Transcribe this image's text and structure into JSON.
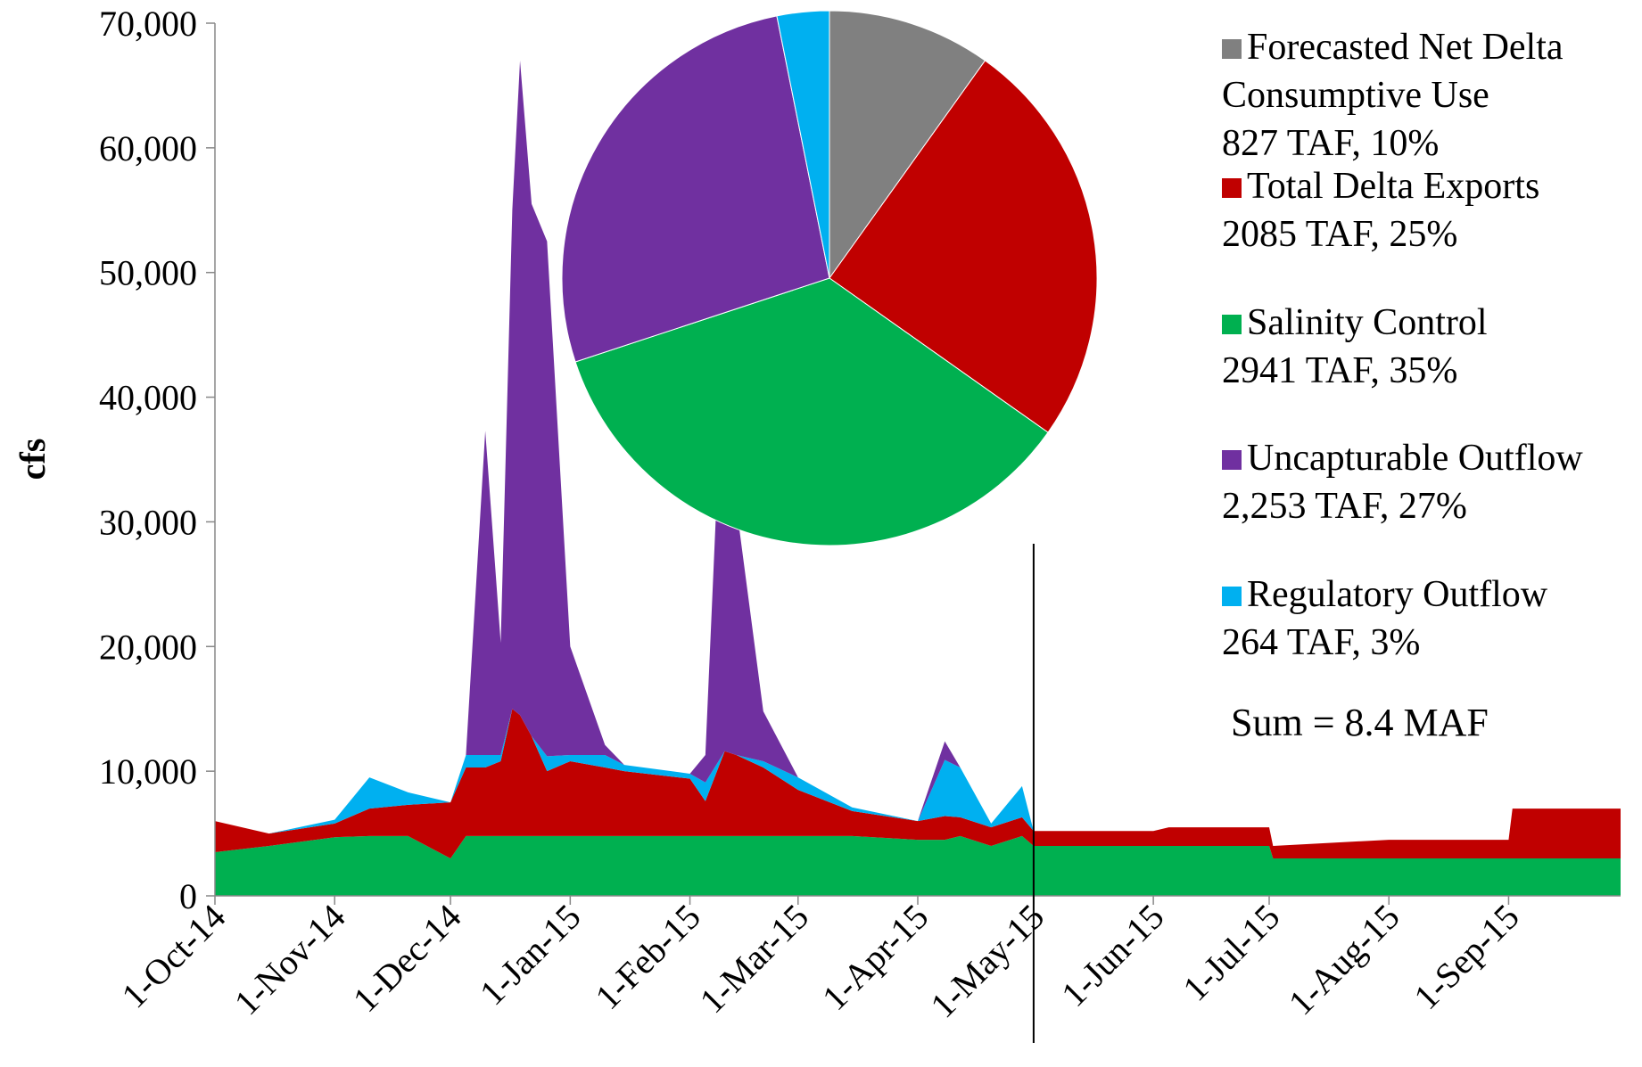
{
  "chart_data": [
    {
      "type": "area",
      "y_label": "cfs",
      "x": [
        "2014-10-01",
        "2014-10-15",
        "2014-11-01",
        "2014-11-10",
        "2014-11-20",
        "2014-12-01",
        "2014-12-05",
        "2014-12-10",
        "2014-12-14",
        "2014-12-17",
        "2014-12-19",
        "2014-12-22",
        "2014-12-26",
        "2015-01-01",
        "2015-01-10",
        "2015-01-15",
        "2015-02-01",
        "2015-02-05",
        "2015-02-10",
        "2015-02-13",
        "2015-02-20",
        "2015-03-01",
        "2015-03-15",
        "2015-04-01",
        "2015-04-08",
        "2015-04-12",
        "2015-04-20",
        "2015-04-28",
        "2015-05-01",
        "2015-06-01",
        "2015-06-05",
        "2015-07-01",
        "2015-07-02",
        "2015-08-01",
        "2015-09-01",
        "2015-09-02",
        "2015-09-30"
      ],
      "series": [
        {
          "name": "Salinity Control",
          "color": "#00b050",
          "values": [
            3500,
            4000,
            4700,
            4800,
            4800,
            3000,
            4800,
            4800,
            4800,
            4800,
            4800,
            4800,
            4800,
            4800,
            4800,
            4800,
            4800,
            4800,
            4800,
            4800,
            4800,
            4800,
            4800,
            4500,
            4500,
            4800,
            4000,
            4800,
            4000,
            4000,
            4000,
            4000,
            3000,
            3000,
            3000,
            3000,
            3000
          ]
        },
        {
          "name": "Total Delta Exports",
          "color": "#c00000",
          "values": [
            2500,
            1000,
            1100,
            2200,
            2500,
            4500,
            5500,
            5500,
            6000,
            10200,
            9700,
            8000,
            5200,
            6000,
            5500,
            5200,
            4600,
            2800,
            6800,
            6500,
            5500,
            3700,
            2000,
            1500,
            1900,
            1500,
            1500,
            1500,
            1200,
            1200,
            1500,
            1500,
            1000,
            1500,
            1500,
            4000,
            4000
          ]
        },
        {
          "name": "Regulatory Outflow",
          "color": "#00b0f0",
          "values": [
            0,
            0,
            300,
            2500,
            1000,
            0,
            1000,
            1000,
            500,
            0,
            0,
            0,
            1200,
            500,
            1000,
            500,
            400,
            1500,
            0,
            0,
            500,
            1000,
            300,
            0,
            4500,
            4000,
            300,
            2500,
            0,
            0,
            0,
            0,
            0,
            0,
            0,
            0,
            0
          ]
        },
        {
          "name": "Uncapturable Outflow",
          "color": "#7030a0",
          "values": [
            0,
            0,
            0,
            0,
            0,
            0,
            0,
            26000,
            9000,
            40000,
            52500,
            42700,
            41300,
            8700,
            800,
            0,
            0,
            2200,
            35000,
            20000,
            4000,
            0,
            0,
            0,
            1500,
            0,
            0,
            0,
            0,
            0,
            0,
            0,
            0,
            0,
            0,
            0,
            0
          ]
        }
      ],
      "xlim": [
        "2014-10-01",
        "2015-09-30"
      ],
      "xticks": [
        {
          "value": "2014-10-01",
          "label": "1-Oct-14"
        },
        {
          "value": "2014-11-01",
          "label": "1-Nov-14"
        },
        {
          "value": "2014-12-01",
          "label": "1-Dec-14"
        },
        {
          "value": "2015-01-01",
          "label": "1-Jan-15"
        },
        {
          "value": "2015-02-01",
          "label": "1-Feb-15"
        },
        {
          "value": "2015-03-01",
          "label": "1-Mar-15"
        },
        {
          "value": "2015-04-01",
          "label": "1-Apr-15"
        },
        {
          "value": "2015-05-01",
          "label": "1-May-15"
        },
        {
          "value": "2015-06-01",
          "label": "1-Jun-15"
        },
        {
          "value": "2015-07-01",
          "label": "1-Jul-15"
        },
        {
          "value": "2015-08-01",
          "label": "1-Aug-15"
        },
        {
          "value": "2015-09-01",
          "label": "1-Sep-15"
        }
      ],
      "ylim": [
        0,
        70000
      ],
      "yticks": [
        0,
        {
          "value": 10000,
          "label": "10,000"
        },
        {
          "value": 20000,
          "label": "20,000"
        },
        {
          "value": 30000,
          "label": "30,000"
        },
        {
          "value": 40000,
          "label": "40,000"
        },
        {
          "value": 50000,
          "label": "50,000"
        },
        {
          "value": 60000,
          "label": "60,000"
        },
        {
          "value": 70000,
          "label": "70,000"
        }
      ],
      "forecast_start": "2015-05-01"
    },
    {
      "type": "pie",
      "categories": [
        "Forecasted Net Delta Consumptive Use",
        "Total Delta Exports",
        "Salinity Control",
        "Uncapturable Outflow",
        "Regulatory Outflow"
      ],
      "values": [
        827,
        2085,
        2941,
        2253,
        264
      ],
      "value_labels": [
        "827 TAF, 10%",
        "2085 TAF, 25%",
        "2941 TAF, 35%",
        "2,253 TAF, 27%",
        "264 TAF, 3%"
      ],
      "colors": [
        "#808080",
        "#c00000",
        "#00b050",
        "#7030a0",
        "#00b0f0"
      ],
      "annotation": "Sum = 8.4 MAF"
    }
  ]
}
